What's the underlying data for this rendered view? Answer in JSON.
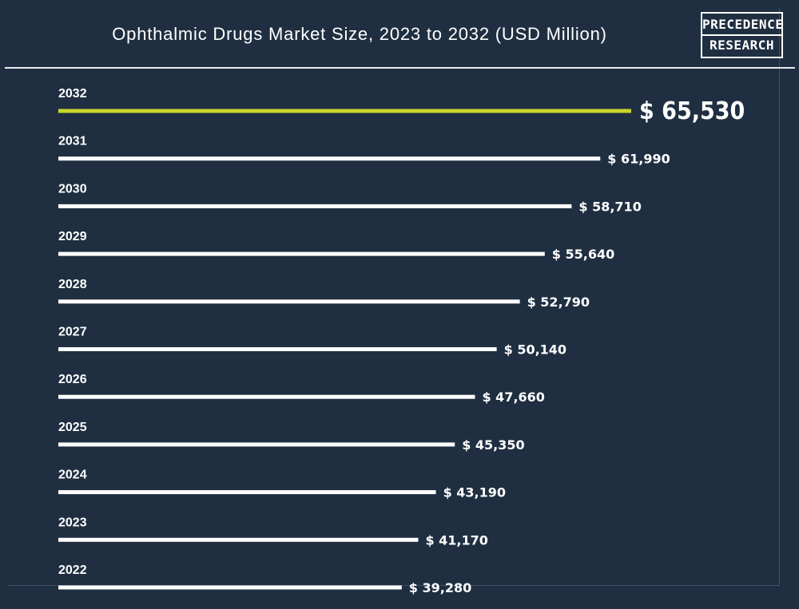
{
  "header": {
    "title": "Ophthalmic Drugs Market Size, 2023 to 2032 (USD Million)",
    "logo_line1": "PRECEDENCE",
    "logo_line2": "RESEARCH"
  },
  "colors": {
    "background": "#1f2f41",
    "bar": "#ffffff",
    "highlight_bar": "#c8d42a",
    "text": "#ffffff"
  },
  "chart_data": {
    "type": "bar",
    "orientation": "horizontal",
    "title": "Ophthalmic Drugs Market Size, 2023 to 2032 (USD Million)",
    "categories": [
      "2032",
      "2031",
      "2030",
      "2029",
      "2028",
      "2027",
      "2026",
      "2025",
      "2024",
      "2023",
      "2022"
    ],
    "values": [
      65530,
      61990,
      58710,
      55640,
      52790,
      50140,
      47660,
      45350,
      43190,
      41170,
      39280
    ],
    "value_labels": [
      "$ 65,530",
      "$ 61,990",
      "$ 58,710",
      "$ 55,640",
      "$ 52,790",
      "$ 50,140",
      "$ 47,660",
      "$ 45,350",
      "$ 43,190",
      "$ 41,170",
      "$ 39,280"
    ],
    "highlight": "2032",
    "unit": "USD Million",
    "grid": false,
    "legend": "none"
  }
}
